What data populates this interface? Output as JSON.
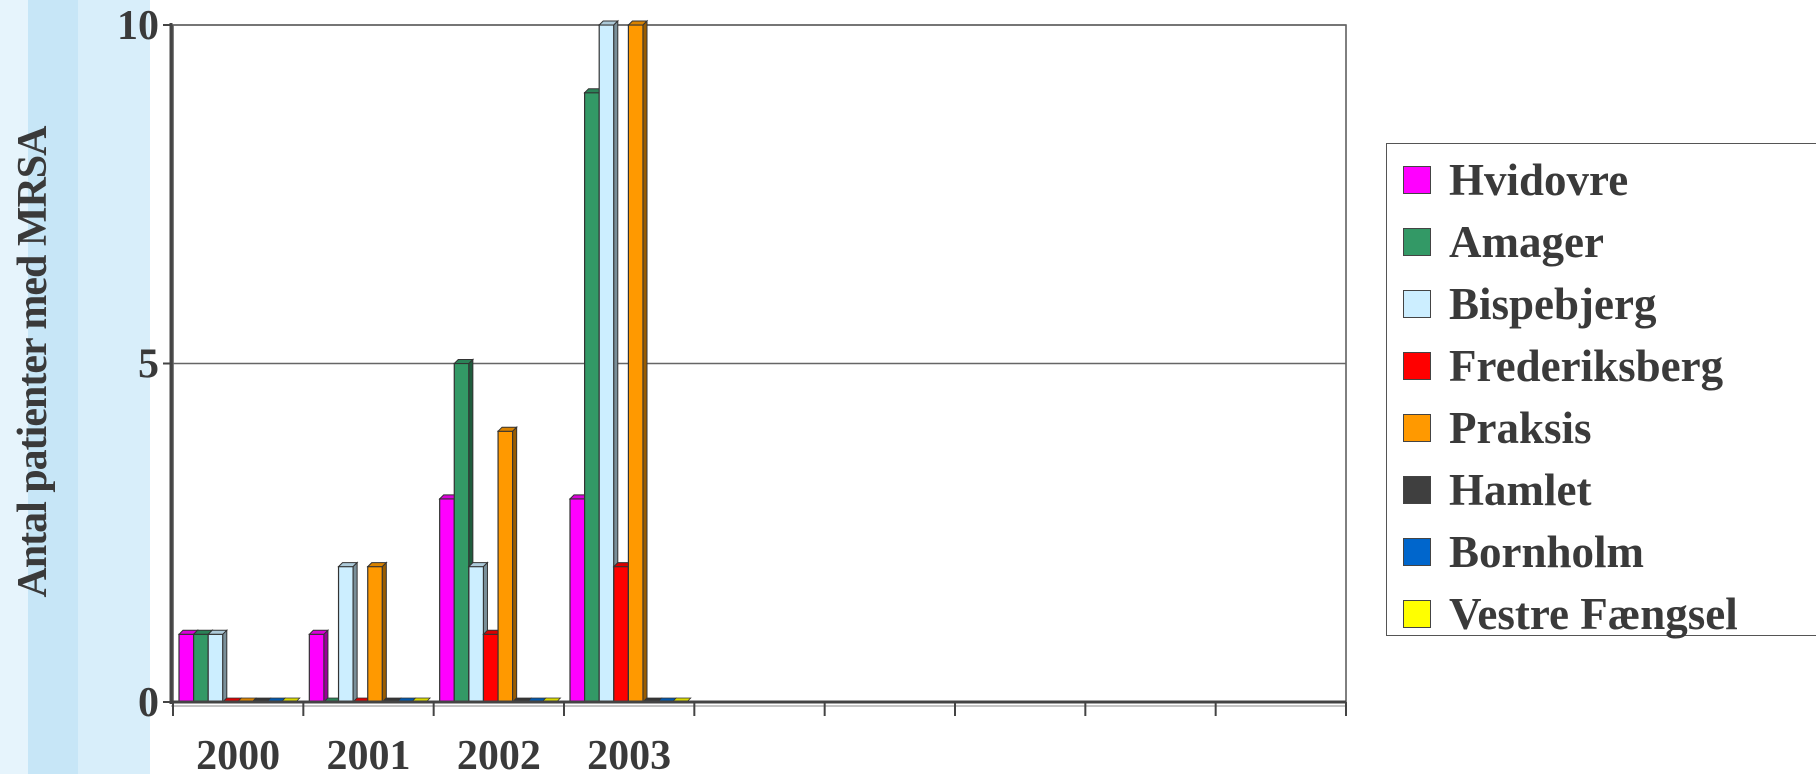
{
  "chart_data": {
    "type": "bar",
    "ylabel": "Antal patienter med MRSA",
    "xlabel": "",
    "ylim": [
      0,
      10
    ],
    "yticks": [
      "0",
      "5",
      "10"
    ],
    "categories": [
      "2000",
      "2001",
      "2002",
      "2003",
      "",
      "",
      "",
      "",
      ""
    ],
    "grid": "horizontal",
    "legend_position": "right",
    "series": [
      {
        "name": "Hvidovre",
        "color": "#ff00ff",
        "values": [
          1,
          1,
          3,
          3,
          0,
          0,
          0,
          0,
          0
        ]
      },
      {
        "name": "Amager",
        "color": "#339966",
        "values": [
          1,
          0,
          5,
          9,
          0,
          0,
          0,
          0,
          0
        ]
      },
      {
        "name": "Bispebjerg",
        "color": "#cceeff",
        "values": [
          1,
          2,
          2,
          10,
          0,
          0,
          0,
          0,
          0
        ]
      },
      {
        "name": "Frederiksberg",
        "color": "#ff0000",
        "values": [
          0,
          0,
          1,
          2,
          0,
          0,
          0,
          0,
          0
        ]
      },
      {
        "name": "Praksis",
        "color": "#ff9900",
        "values": [
          0,
          2,
          4,
          10,
          0,
          0,
          0,
          0,
          0
        ]
      },
      {
        "name": "Hamlet",
        "color": "#3f3f3f",
        "values": [
          0,
          0,
          0,
          0,
          0,
          0,
          0,
          0,
          0
        ]
      },
      {
        "name": "Bornholm",
        "color": "#0066cc",
        "values": [
          0,
          0,
          0,
          0,
          0,
          0,
          0,
          0,
          0
        ]
      },
      {
        "name": "Vestre Fængsel",
        "color": "#ffff00",
        "values": [
          0,
          0,
          0,
          0,
          0,
          0,
          0,
          0,
          0
        ]
      }
    ]
  }
}
